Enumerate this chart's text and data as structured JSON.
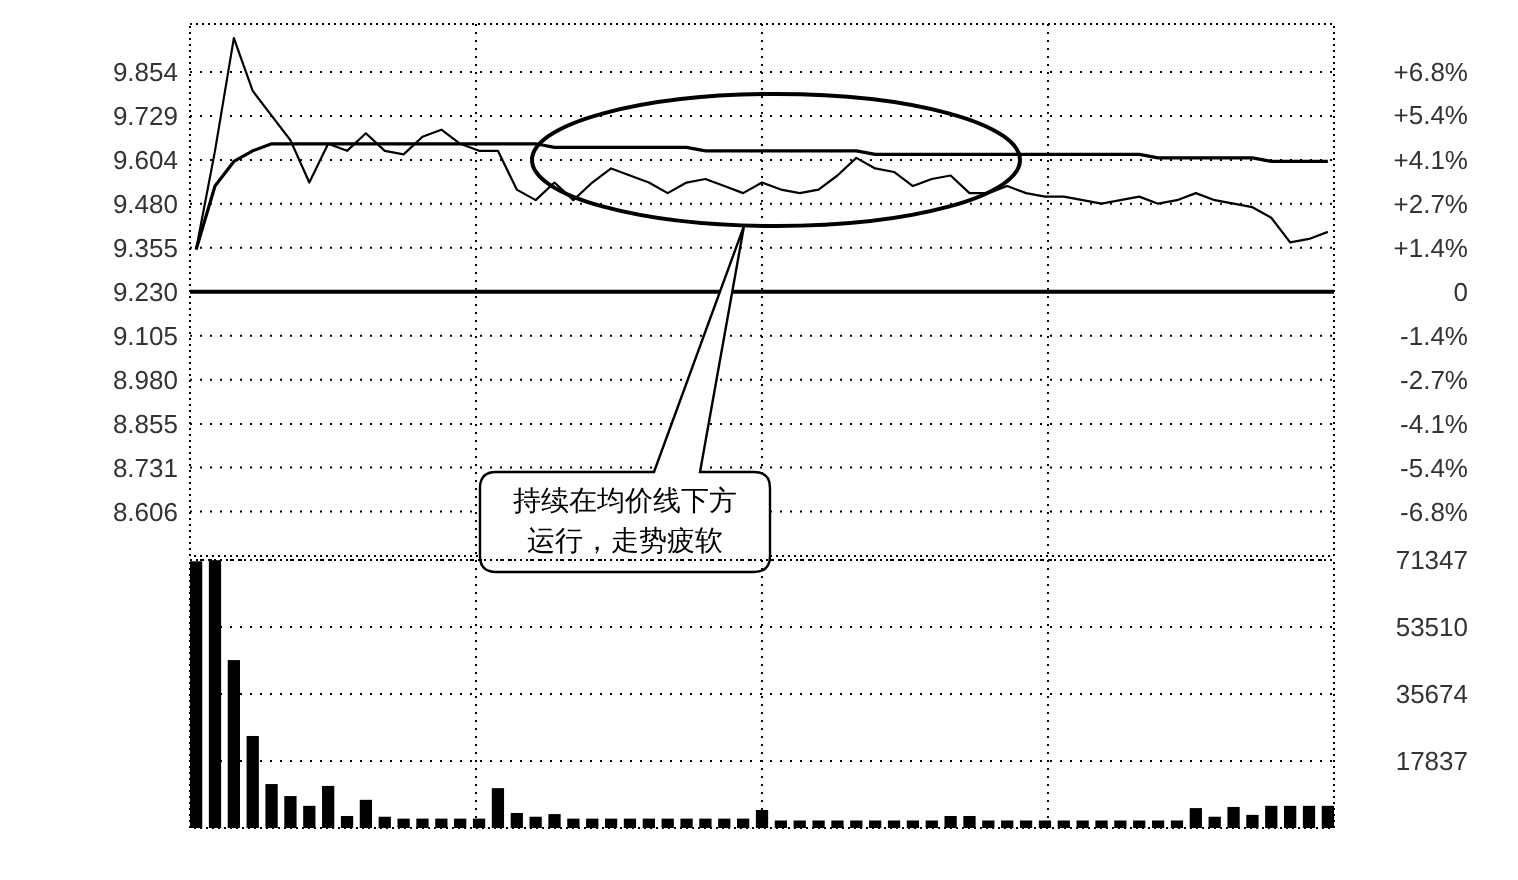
{
  "chart_data": [
    {
      "type": "line",
      "categories": [
        null,
        null,
        null,
        null,
        null,
        null,
        null,
        null,
        null,
        null,
        null,
        null,
        null,
        null,
        null,
        null,
        null,
        null,
        null,
        null,
        null,
        null,
        null,
        null,
        null,
        null,
        null,
        null,
        null,
        null,
        null,
        null,
        null,
        null,
        null,
        null,
        null,
        null,
        null,
        null,
        null,
        null,
        null,
        null,
        null,
        null,
        null,
        null,
        null,
        null,
        null,
        null,
        null,
        null,
        null,
        null,
        null,
        null,
        null,
        null,
        null
      ],
      "series": [
        {
          "color": "#000000",
          "values": [
            9.35,
            9.63,
            9.95,
            9.8,
            9.73,
            9.66,
            9.54,
            9.65,
            9.63,
            9.68,
            9.63,
            9.62,
            9.67,
            9.69,
            9.65,
            9.63,
            9.63,
            9.52,
            9.49,
            9.54,
            9.49,
            9.54,
            9.58,
            9.56,
            9.54,
            9.51,
            9.54,
            9.55,
            9.53,
            9.51,
            9.54,
            9.52,
            9.51,
            9.52,
            9.56,
            9.61,
            9.58,
            9.57,
            9.53,
            9.55,
            9.56,
            9.51,
            9.51,
            9.53,
            9.51,
            9.5,
            9.5,
            9.49,
            9.48,
            9.49,
            9.5,
            9.48,
            9.49,
            9.51,
            9.49,
            9.48,
            9.47,
            9.44,
            9.37,
            9.38,
            9.4
          ]
        },
        {
          "color": "#000000",
          "values": [
            9.35,
            9.53,
            9.6,
            9.63,
            9.65,
            9.65,
            9.65,
            9.65,
            9.65,
            9.65,
            9.65,
            9.65,
            9.65,
            9.65,
            9.65,
            9.65,
            9.65,
            9.65,
            9.65,
            9.64,
            9.64,
            9.64,
            9.64,
            9.64,
            9.64,
            9.64,
            9.64,
            9.63,
            9.63,
            9.63,
            9.63,
            9.63,
            9.63,
            9.63,
            9.63,
            9.63,
            9.62,
            9.62,
            9.62,
            9.62,
            9.62,
            9.62,
            9.62,
            9.62,
            9.62,
            9.62,
            9.62,
            9.62,
            9.62,
            9.62,
            9.62,
            9.61,
            9.61,
            9.61,
            9.61,
            9.61,
            9.61,
            9.6,
            9.6,
            9.6,
            9.6
          ]
        }
      ],
      "ylim": [
        8.48,
        9.99
      ],
      "yticks": [
        {
          "value": 9.854,
          "label": "9.854"
        },
        {
          "value": 9.729,
          "label": "9.729"
        },
        {
          "value": 9.604,
          "label": "9.604"
        },
        {
          "value": 9.48,
          "label": "9.480"
        },
        {
          "value": 9.355,
          "label": "9.355"
        },
        {
          "value": 9.23,
          "label": "9.230"
        },
        {
          "value": 9.105,
          "label": "9.105"
        },
        {
          "value": 8.98,
          "label": "8.980"
        },
        {
          "value": 8.855,
          "label": "8.855"
        },
        {
          "value": 8.731,
          "label": "8.731"
        },
        {
          "value": 8.606,
          "label": "8.606"
        }
      ],
      "y2lim": [
        -8.13,
        8.23
      ],
      "y2ticks": [
        {
          "value": 6.76,
          "label": "+6.8%"
        },
        {
          "value": 5.42,
          "label": "+5.4%"
        },
        {
          "value": 4.06,
          "label": "+4.1%"
        },
        {
          "value": 2.71,
          "label": "+2.7%"
        },
        {
          "value": 1.35,
          "label": "+1.4%"
        },
        0,
        {
          "value": -1.35,
          "label": "-1.4%"
        },
        {
          "value": -2.71,
          "label": "-2.7%"
        },
        {
          "value": -4.06,
          "label": "-4.1%"
        },
        {
          "value": -5.42,
          "label": "-5.4%"
        },
        {
          "value": -6.76,
          "label": "-6.8%"
        }
      ],
      "ref_lines": [
        {
          "axis": "y",
          "value": 9.23,
          "color": "#000000"
        }
      ],
      "grid": true,
      "tick_labels": "y",
      "annotations": [
        "持续在均价线下方运行，走势疲软"
      ]
    },
    {
      "type": "bar",
      "categories": [
        null,
        null,
        null,
        null,
        null,
        null,
        null,
        null,
        null,
        null,
        null,
        null,
        null,
        null,
        null,
        null,
        null,
        null,
        null,
        null,
        null,
        null,
        null,
        null,
        null,
        null,
        null,
        null,
        null,
        null,
        null,
        null,
        null,
        null,
        null,
        null,
        null,
        null,
        null,
        null,
        null,
        null,
        null,
        null,
        null,
        null,
        null,
        null,
        null,
        null,
        null,
        null,
        null,
        null,
        null,
        null,
        null,
        null,
        null,
        null,
        null
      ],
      "series": [
        {
          "color": "#000000",
          "values": [
            71000,
            71300,
            44700,
            24500,
            11700,
            8500,
            5900,
            11200,
            3200,
            7500,
            3000,
            2500,
            2500,
            2500,
            2500,
            2500,
            10600,
            4000,
            3000,
            3700,
            2500,
            2500,
            2500,
            2500,
            2500,
            2500,
            2500,
            2500,
            2500,
            2500,
            4800,
            2000,
            2000,
            2000,
            2000,
            2000,
            2000,
            2000,
            2000,
            2000,
            3200,
            3200,
            2000,
            2000,
            2000,
            2000,
            2000,
            2000,
            2000,
            2000,
            2000,
            2000,
            2000,
            5300,
            3000,
            5600,
            3500,
            5900,
            5900,
            5900,
            5900
          ]
        }
      ],
      "ylim": [
        0,
        71347
      ],
      "yticks": [
        71347,
        53510,
        35674,
        17837
      ],
      "grid": true,
      "tick_labels": "y"
    }
  ]
}
